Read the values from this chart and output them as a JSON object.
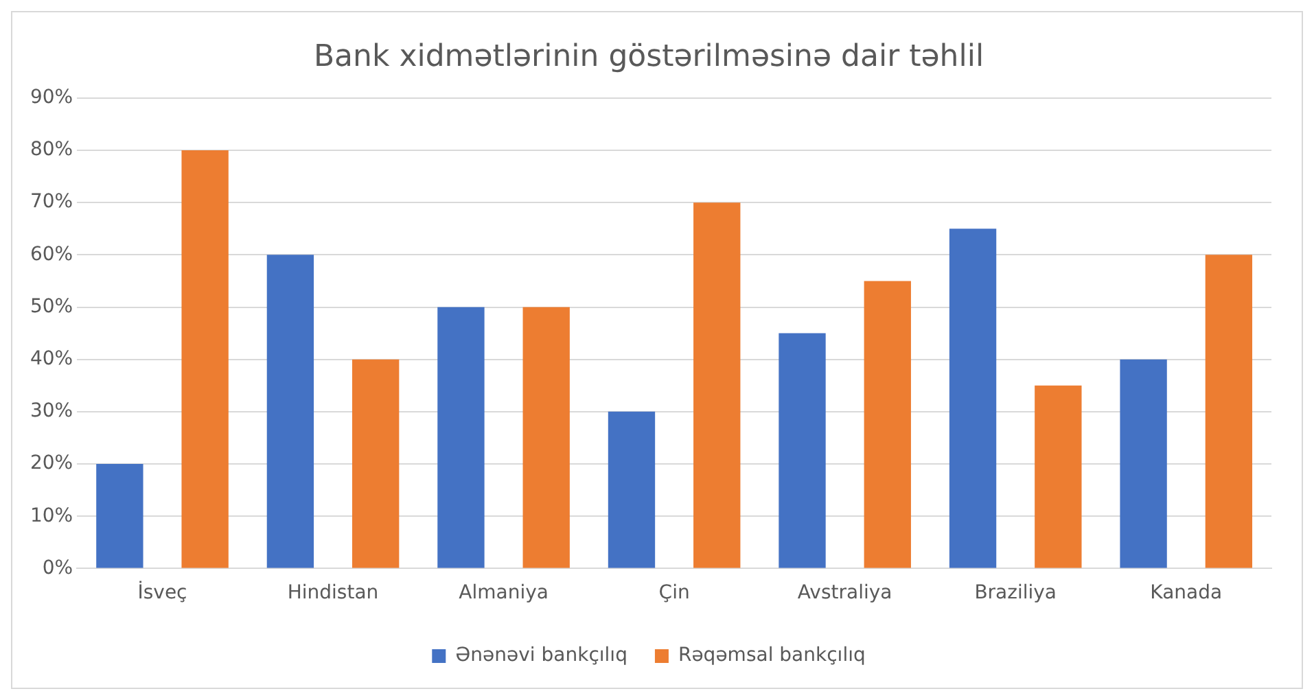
{
  "chart_data": {
    "type": "bar",
    "title": "Bank xidmətlərinin göstərilməsinə dair təhlil",
    "categories": [
      "İsveç",
      "Hindistan",
      "Almaniya",
      "Çin",
      "Avstraliya",
      "Braziliya",
      "Kanada"
    ],
    "series": [
      {
        "name": "Ənənəvi bankçılıq",
        "color": "#4472c4",
        "values": [
          20,
          60,
          50,
          30,
          45,
          65,
          40
        ]
      },
      {
        "name": "Rəqəmsal bankçılıq",
        "color": "#ed7d31",
        "values": [
          80,
          40,
          50,
          70,
          55,
          35,
          60
        ]
      }
    ],
    "ylim": [
      0,
      90
    ],
    "yticks": [
      {
        "value": 0,
        "label": "0%"
      },
      {
        "value": 10,
        "label": "10%"
      },
      {
        "value": 20,
        "label": "20%"
      },
      {
        "value": 30,
        "label": "30%"
      },
      {
        "value": 40,
        "label": "40%"
      },
      {
        "value": 50,
        "label": "50%"
      },
      {
        "value": 60,
        "label": "60%"
      },
      {
        "value": 70,
        "label": "70%"
      },
      {
        "value": 80,
        "label": "80%"
      },
      {
        "value": 90,
        "label": "90%"
      }
    ],
    "grid": "y",
    "legend": "bottom"
  }
}
